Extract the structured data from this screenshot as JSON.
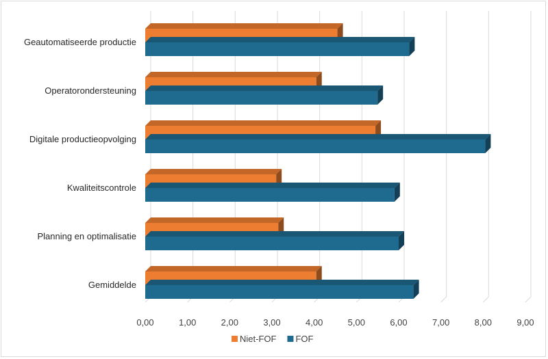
{
  "chart_data": {
    "type": "bar",
    "orientation": "horizontal",
    "style": "3d",
    "categories": [
      "Geautomatiseerde productie",
      "Operatorondersteuning",
      "Digitale productieopvolging",
      "Kwaliteitscontrole",
      "Planning en optimalisatie",
      "Gemiddelde"
    ],
    "series": [
      {
        "name": "Niet-FOF",
        "color": "#ED7D31",
        "values": [
          4.55,
          4.05,
          5.45,
          3.1,
          3.15,
          4.05
        ]
      },
      {
        "name": "FOF",
        "color": "#1F6A8F",
        "values": [
          6.25,
          5.5,
          8.05,
          5.9,
          6.0,
          6.35
        ]
      }
    ],
    "xlim": [
      0,
      9
    ],
    "xticks": [
      "0,00",
      "1,00",
      "2,00",
      "3,00",
      "4,00",
      "5,00",
      "6,00",
      "7,00",
      "8,00",
      "9,00"
    ],
    "grid": true,
    "legend_position": "bottom"
  }
}
